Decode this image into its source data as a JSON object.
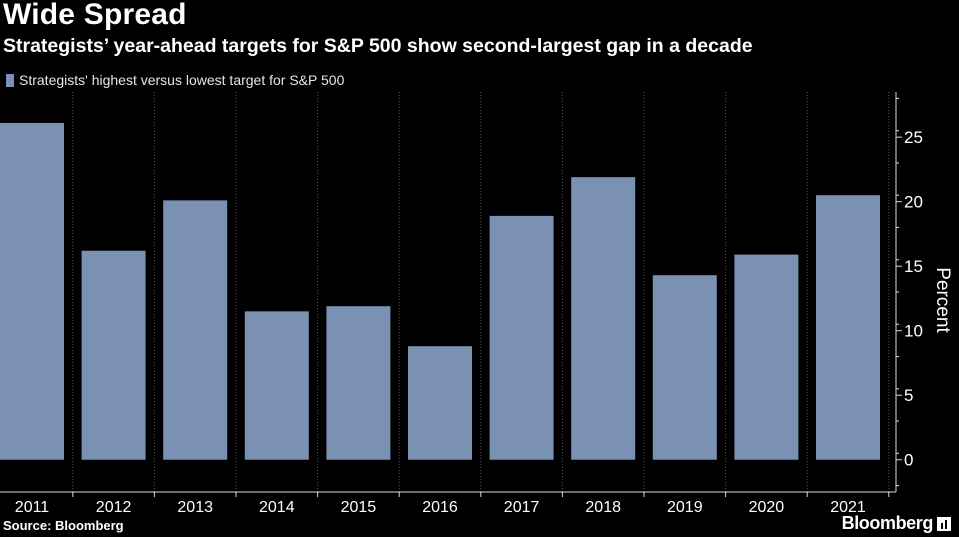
{
  "header": {
    "title": "Wide Spread",
    "subtitle": "Strategists’ year-ahead targets for S&P 500 show second-largest gap in a decade"
  },
  "legend": {
    "label": "Strategists' highest versus lowest target for S&P 500"
  },
  "footer": {
    "source": "Source: Bloomberg",
    "brand": "Bloomberg",
    "brand_icon": "bloomberg-chart-icon"
  },
  "colors": {
    "background": "#000000",
    "bar": "#7a91b4",
    "grid": "#5a5a5a",
    "axis": "#d9d9d9",
    "text": "#ffffff"
  },
  "chart_data": {
    "type": "bar",
    "categories": [
      "2011",
      "2012",
      "2013",
      "2014",
      "2015",
      "2016",
      "2017",
      "2018",
      "2019",
      "2020",
      "2021"
    ],
    "series": [
      {
        "name": "Strategists' highest versus lowest target for S&P 500",
        "values": [
          26.1,
          16.2,
          20.1,
          11.5,
          11.9,
          8.8,
          18.9,
          21.9,
          14.3,
          15.9,
          20.5
        ]
      }
    ],
    "ylabel": "Percent",
    "ylim": [
      -2.5,
      28.5
    ],
    "yticks": [
      0,
      5,
      10,
      15,
      20,
      25
    ],
    "y_axis_side": "right",
    "grid": "vertical dotted",
    "legend_position": "top-left"
  }
}
